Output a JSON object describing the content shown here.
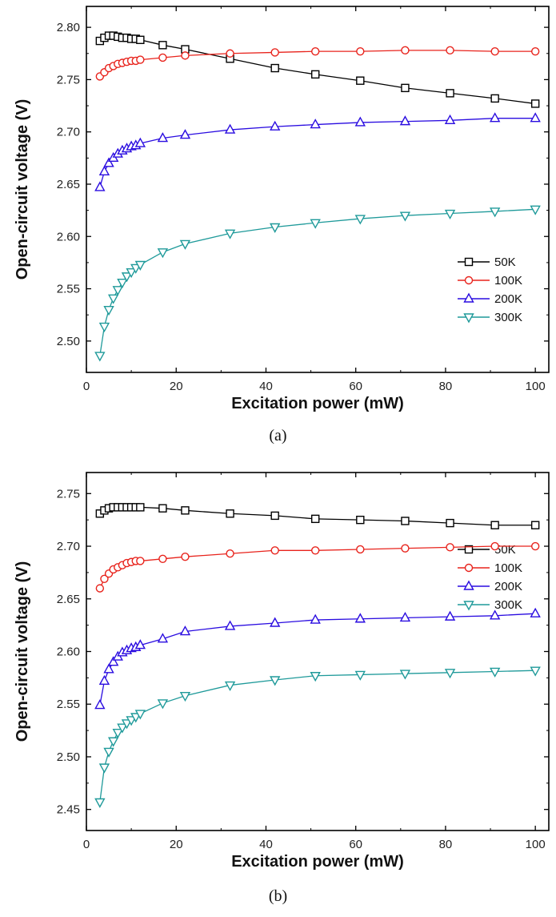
{
  "chart_data": [
    {
      "type": "line",
      "caption": "(a)",
      "xlabel": "Excitation power (mW)",
      "ylabel": "Open-circuit voltage (V)",
      "xlim": [
        0,
        103
      ],
      "ylim": [
        2.47,
        2.82
      ],
      "xticks": [
        0,
        20,
        40,
        60,
        80,
        100
      ],
      "yticks": [
        2.5,
        2.55,
        2.6,
        2.65,
        2.7,
        2.75,
        2.8
      ],
      "legend_position": "bottom-right",
      "series": [
        {
          "name": "50K",
          "color": "#000000",
          "marker": "square",
          "x": [
            3,
            4,
            5,
            6,
            7,
            8,
            9,
            10,
            11,
            12,
            17,
            22,
            32,
            42,
            51,
            61,
            71,
            81,
            91,
            100
          ],
          "y": [
            2.787,
            2.79,
            2.792,
            2.792,
            2.791,
            2.79,
            2.79,
            2.789,
            2.789,
            2.788,
            2.783,
            2.779,
            2.77,
            2.761,
            2.755,
            2.749,
            2.742,
            2.737,
            2.732,
            2.727
          ]
        },
        {
          "name": "100K",
          "color": "#e8231c",
          "marker": "circle",
          "x": [
            3,
            4,
            5,
            6,
            7,
            8,
            9,
            10,
            11,
            12,
            17,
            22,
            32,
            42,
            51,
            61,
            71,
            81,
            91,
            100
          ],
          "y": [
            2.753,
            2.757,
            2.761,
            2.763,
            2.765,
            2.766,
            2.767,
            2.768,
            2.768,
            2.769,
            2.771,
            2.773,
            2.775,
            2.776,
            2.777,
            2.777,
            2.778,
            2.778,
            2.777,
            2.777
          ]
        },
        {
          "name": "200K",
          "color": "#2a0ce0",
          "marker": "triangle-up",
          "x": [
            3,
            4,
            5,
            6,
            7,
            8,
            9,
            10,
            11,
            12,
            17,
            22,
            32,
            42,
            51,
            61,
            71,
            81,
            91,
            100
          ],
          "y": [
            2.647,
            2.662,
            2.67,
            2.675,
            2.679,
            2.682,
            2.684,
            2.686,
            2.687,
            2.689,
            2.694,
            2.697,
            2.702,
            2.705,
            2.707,
            2.709,
            2.71,
            2.711,
            2.713,
            2.713
          ]
        },
        {
          "name": "300K",
          "color": "#1f9a9a",
          "marker": "triangle-down",
          "x": [
            3,
            4,
            5,
            6,
            7,
            8,
            9,
            10,
            11,
            12,
            17,
            22,
            32,
            42,
            51,
            61,
            71,
            81,
            91,
            100
          ],
          "y": [
            2.486,
            2.514,
            2.53,
            2.541,
            2.549,
            2.556,
            2.562,
            2.566,
            2.57,
            2.573,
            2.585,
            2.593,
            2.603,
            2.609,
            2.613,
            2.617,
            2.62,
            2.622,
            2.624,
            2.626
          ]
        }
      ]
    },
    {
      "type": "line",
      "caption": "(b)",
      "xlabel": "Excitation power (mW)",
      "ylabel": "Open-circuit voltage (V)",
      "xlim": [
        0,
        103
      ],
      "ylim": [
        2.43,
        2.77
      ],
      "xticks": [
        0,
        20,
        40,
        60,
        80,
        100
      ],
      "yticks": [
        2.45,
        2.5,
        2.55,
        2.6,
        2.65,
        2.7,
        2.75
      ],
      "legend_position": "bottom-right",
      "series": [
        {
          "name": "50K",
          "color": "#000000",
          "marker": "square",
          "x": [
            3,
            4,
            5,
            6,
            7,
            8,
            9,
            10,
            11,
            12,
            17,
            22,
            32,
            42,
            51,
            61,
            71,
            81,
            91,
            100
          ],
          "y": [
            2.731,
            2.734,
            2.736,
            2.737,
            2.737,
            2.737,
            2.737,
            2.737,
            2.737,
            2.737,
            2.736,
            2.734,
            2.731,
            2.729,
            2.726,
            2.725,
            2.724,
            2.722,
            2.72,
            2.72
          ]
        },
        {
          "name": "100K",
          "color": "#e8231c",
          "marker": "circle",
          "x": [
            3,
            4,
            5,
            6,
            7,
            8,
            9,
            10,
            11,
            12,
            17,
            22,
            32,
            42,
            51,
            61,
            71,
            81,
            91,
            100
          ],
          "y": [
            2.66,
            2.669,
            2.674,
            2.678,
            2.68,
            2.682,
            2.684,
            2.685,
            2.686,
            2.686,
            2.688,
            2.69,
            2.693,
            2.696,
            2.696,
            2.697,
            2.698,
            2.699,
            2.7,
            2.7
          ]
        },
        {
          "name": "200K",
          "color": "#2a0ce0",
          "marker": "triangle-up",
          "x": [
            3,
            4,
            5,
            6,
            7,
            8,
            9,
            10,
            11,
            12,
            17,
            22,
            32,
            42,
            51,
            61,
            71,
            81,
            91,
            100
          ],
          "y": [
            2.549,
            2.572,
            2.583,
            2.59,
            2.595,
            2.599,
            2.601,
            2.603,
            2.604,
            2.606,
            2.612,
            2.619,
            2.624,
            2.627,
            2.63,
            2.631,
            2.632,
            2.633,
            2.634,
            2.636
          ]
        },
        {
          "name": "300K",
          "color": "#1f9a9a",
          "marker": "triangle-down",
          "x": [
            3,
            4,
            5,
            6,
            7,
            8,
            9,
            10,
            11,
            12,
            17,
            22,
            32,
            42,
            51,
            61,
            71,
            81,
            91,
            100
          ],
          "y": [
            2.457,
            2.49,
            2.505,
            2.515,
            2.523,
            2.528,
            2.532,
            2.535,
            2.538,
            2.541,
            2.551,
            2.558,
            2.568,
            2.573,
            2.577,
            2.578,
            2.579,
            2.58,
            2.581,
            2.582
          ]
        }
      ]
    }
  ]
}
